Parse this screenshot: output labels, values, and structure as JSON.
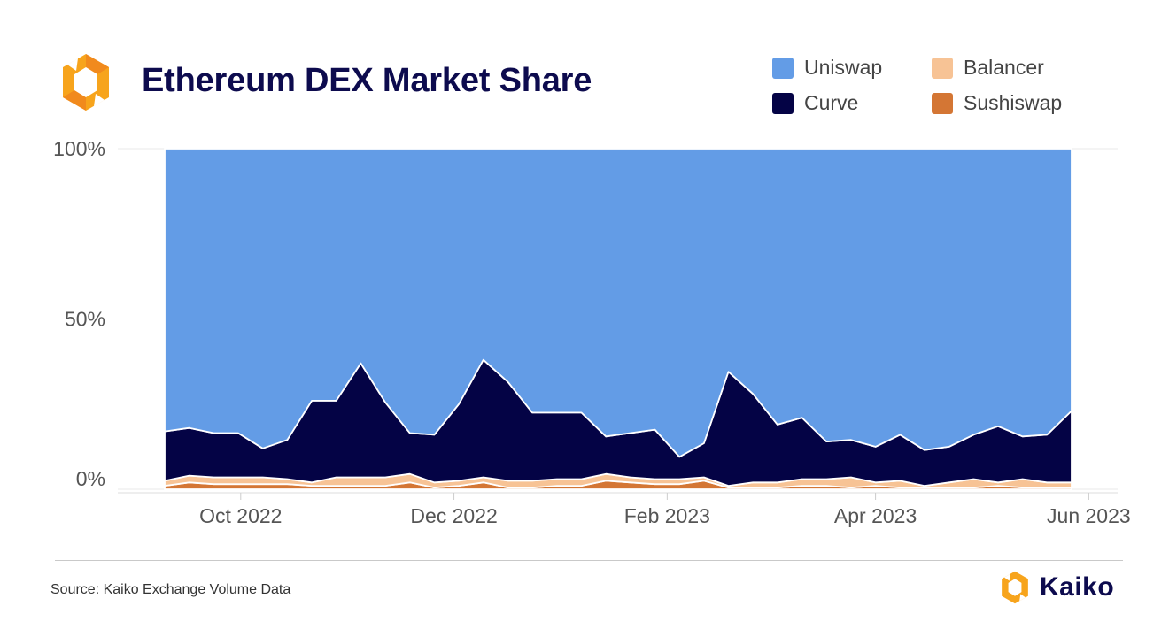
{
  "title": "Ethereum DEX Market Share",
  "source": "Source: Kaiko Exchange Volume Data",
  "brand": "Kaiko",
  "legend": [
    {
      "name": "Uniswap",
      "color": "#639ce6"
    },
    {
      "name": "Balancer",
      "color": "#f7c395"
    },
    {
      "name": "Curve",
      "color": "#040345"
    },
    {
      "name": "Sushiswap",
      "color": "#d47634"
    }
  ],
  "chart_data": {
    "type": "area",
    "stacked": true,
    "title": "Ethereum DEX Market Share",
    "ylim": [
      0,
      100
    ],
    "yticks": [
      {
        "label": "100%",
        "value": 100
      },
      {
        "label": "50%",
        "value": 50
      },
      {
        "label": "0%",
        "value": 0
      }
    ],
    "xticks": [
      {
        "label": "Oct 2022",
        "index": 3.1
      },
      {
        "label": "Dec 2022",
        "index": 11.8
      },
      {
        "label": "Feb 2023",
        "index": 20.5
      },
      {
        "label": "Apr 2023",
        "index": 29.0
      },
      {
        "label": "Jun 2023",
        "index": 37.7
      }
    ],
    "n_points": 38,
    "series": [
      {
        "name": "Sushiswap",
        "color": "#d47634",
        "values": [
          1.0,
          2.0,
          1.5,
          1.5,
          1.5,
          1.5,
          1.0,
          1.0,
          1.0,
          1.0,
          2.0,
          0.5,
          1.0,
          2.0,
          0.5,
          0.5,
          1.0,
          1.0,
          2.5,
          2.0,
          1.5,
          1.5,
          2.5,
          0.5,
          0.5,
          0.5,
          1.0,
          1.0,
          0.5,
          1.0,
          0.5,
          0.5,
          0.5,
          0.5,
          1.0,
          0.5,
          0.5,
          0.5
        ]
      },
      {
        "name": "Balancer",
        "color": "#f7c395",
        "values": [
          1.5,
          2.0,
          2.0,
          2.0,
          2.0,
          1.5,
          1.0,
          2.5,
          2.5,
          2.5,
          2.5,
          1.5,
          1.5,
          1.5,
          2.0,
          2.0,
          2.0,
          2.0,
          2.0,
          1.5,
          1.5,
          1.5,
          1.0,
          0.5,
          1.5,
          1.5,
          2.0,
          2.0,
          3.0,
          1.0,
          2.0,
          0.5,
          1.5,
          2.5,
          1.0,
          2.5,
          1.5,
          1.5
        ]
      },
      {
        "name": "Curve",
        "color": "#040345",
        "values": [
          14.5,
          14.0,
          13.0,
          13.0,
          8.5,
          11.5,
          24.0,
          22.5,
          33.5,
          22.0,
          12.0,
          14.0,
          22.5,
          34.5,
          29.0,
          20.0,
          19.5,
          19.5,
          11.0,
          13.0,
          14.5,
          6.5,
          10.0,
          33.5,
          26.0,
          17.0,
          18.0,
          11.0,
          11.0,
          10.5,
          13.5,
          10.5,
          10.5,
          13.0,
          16.5,
          12.5,
          14.0,
          21.0
        ]
      },
      {
        "name": "Uniswap",
        "color": "#639ce6",
        "values": [
          83.0,
          82.0,
          83.5,
          83.5,
          88.0,
          85.5,
          74.0,
          74.0,
          63.0,
          74.5,
          83.5,
          84.0,
          75.0,
          62.0,
          68.5,
          77.5,
          77.5,
          77.5,
          84.5,
          83.5,
          82.5,
          90.5,
          86.5,
          65.5,
          72.0,
          81.0,
          79.0,
          86.0,
          85.5,
          87.5,
          84.0,
          88.5,
          87.5,
          84.0,
          81.5,
          84.5,
          84.0,
          77.0
        ]
      }
    ]
  }
}
